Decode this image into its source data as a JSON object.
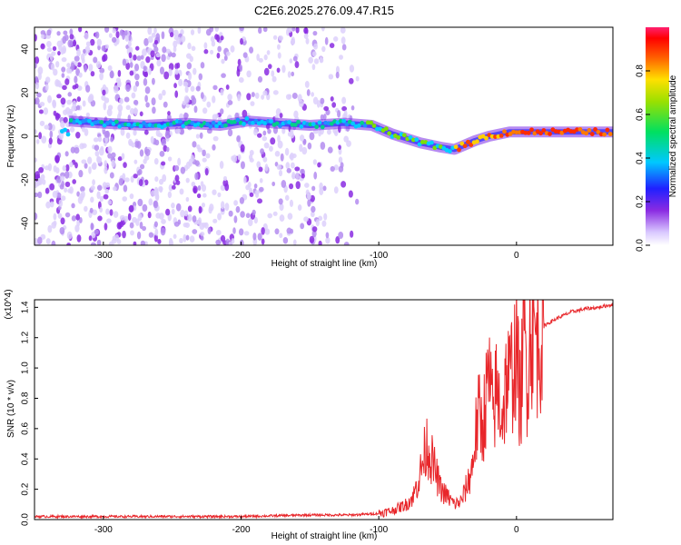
{
  "figure_title": "C2E6.2025.276.09.47.R15",
  "chart_data": [
    {
      "type": "heatmap",
      "panel": "spectrogram",
      "xlabel": "Height of straight line (km)",
      "ylabel": "Frequency (Hz)",
      "xlim": [
        -350,
        70
      ],
      "ylim": [
        -50,
        50
      ],
      "xticks": [
        -300,
        -200,
        -100,
        0
      ],
      "yticks": [
        -40,
        -20,
        0,
        20,
        40
      ],
      "colorbar_label": "Normalized spectral amplitude",
      "colorbar_range": [
        0.0,
        1.0
      ],
      "colorbar_ticks": [
        0.0,
        0.2,
        0.4,
        0.6,
        0.8
      ],
      "signal_ridge": [
        {
          "x": -325,
          "y": 7
        },
        {
          "x": -300,
          "y": 6
        },
        {
          "x": -270,
          "y": 5
        },
        {
          "x": -240,
          "y": 6
        },
        {
          "x": -215,
          "y": 5
        },
        {
          "x": -195,
          "y": 7
        },
        {
          "x": -175,
          "y": 6
        },
        {
          "x": -150,
          "y": 5
        },
        {
          "x": -125,
          "y": 6
        },
        {
          "x": -105,
          "y": 5
        },
        {
          "x": -90,
          "y": 1
        },
        {
          "x": -70,
          "y": -3
        },
        {
          "x": -55,
          "y": -5
        },
        {
          "x": -45,
          "y": -6
        },
        {
          "x": -30,
          "y": -2
        },
        {
          "x": -20,
          "y": 0
        },
        {
          "x": -5,
          "y": 2
        },
        {
          "x": 10,
          "y": 2
        },
        {
          "x": 30,
          "y": 2
        },
        {
          "x": 50,
          "y": 2
        },
        {
          "x": 70,
          "y": 2
        }
      ]
    },
    {
      "type": "line",
      "panel": "snr",
      "xlabel": "Height of straight line (km)",
      "ylabel": "SNR (10 * v/v)",
      "y_scale_label": "(x10^4)",
      "xlim": [
        -350,
        70
      ],
      "ylim": [
        0.0,
        1.45
      ],
      "xticks": [
        -300,
        -200,
        -100,
        0
      ],
      "yticks": [
        0.0,
        0.2,
        0.4,
        0.6,
        0.8,
        1.0,
        1.2,
        1.4
      ],
      "series": [
        {
          "name": "SNR",
          "color": "#e8262a",
          "x": [
            -350,
            -300,
            -250,
            -200,
            -150,
            -120,
            -100,
            -90,
            -80,
            -75,
            -70,
            -65,
            -60,
            -55,
            -50,
            -45,
            -40,
            -35,
            -32,
            -30,
            -27,
            -25,
            -22,
            -20,
            -17,
            -15,
            -12,
            -10,
            -7,
            -5,
            -2,
            0,
            3,
            5,
            8,
            10,
            15,
            20,
            30,
            40,
            50,
            60,
            70
          ],
          "values": [
            0.02,
            0.02,
            0.02,
            0.02,
            0.03,
            0.03,
            0.04,
            0.06,
            0.1,
            0.15,
            0.3,
            0.5,
            0.35,
            0.2,
            0.15,
            0.1,
            0.12,
            0.25,
            0.35,
            0.55,
            0.7,
            0.6,
            0.8,
            0.95,
            0.65,
            0.85,
            0.75,
            0.7,
            0.95,
            0.9,
            1.05,
            1.1,
            0.75,
            1.25,
            0.95,
            1.3,
            1.18,
            1.28,
            1.33,
            1.37,
            1.39,
            1.4,
            1.42
          ]
        }
      ]
    }
  ]
}
